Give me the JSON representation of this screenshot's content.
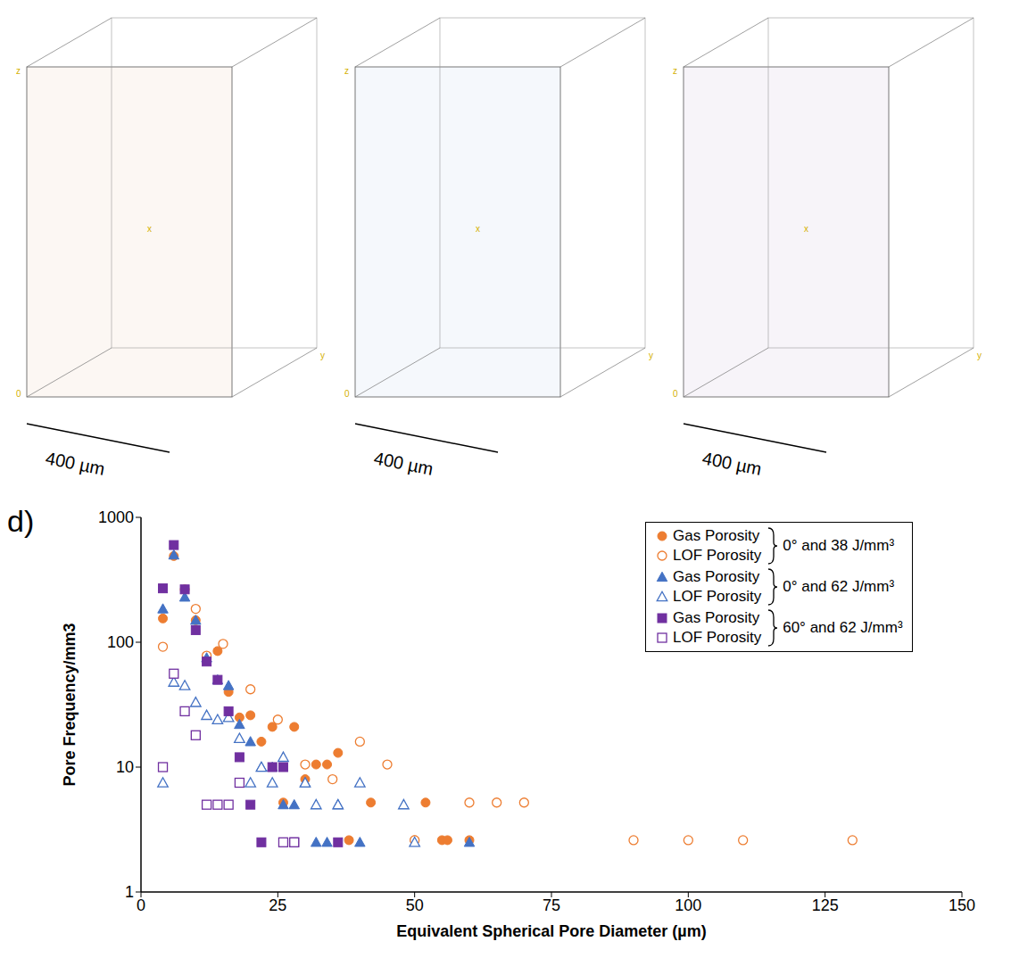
{
  "panels": [
    {
      "color": "#c8742c",
      "scale_bar": "400 µm",
      "axis_letters": [
        "z",
        "0",
        "y",
        "x"
      ]
    },
    {
      "color": "#5b8fc9",
      "scale_bar": "400 µm",
      "axis_letters": [
        "z",
        "0",
        "y",
        "x"
      ]
    },
    {
      "color": "#7b3c9e",
      "scale_bar": "400 µm",
      "axis_letters": [
        "z",
        "0",
        "y",
        "x"
      ]
    }
  ],
  "chart_data": {
    "type": "scatter",
    "panel_label": "d)",
    "x_label": "Equivalent Spherical Pore Diameter (µm)",
    "y_label": "Pore Frequency/mm3",
    "xlim": [
      0,
      150
    ],
    "xticks": [
      0,
      25,
      50,
      75,
      100,
      125,
      150
    ],
    "ylim": [
      1,
      1000
    ],
    "yticks": [
      1,
      10,
      100,
      1000
    ],
    "log": "y",
    "grid": false,
    "legend": "upper right",
    "series": [
      {
        "name": "Gas Porosity",
        "group": "0° and 38 J/mm³",
        "color": "#ed7d31",
        "marker": "filled_circle",
        "x": [
          4,
          6,
          8,
          10,
          12,
          14,
          16,
          18,
          20,
          22,
          24,
          26,
          28,
          30,
          32,
          34,
          36,
          38,
          42,
          50,
          52,
          55,
          56,
          60
        ],
        "values": [
          155,
          490,
          265,
          150,
          75,
          85,
          40,
          25,
          26,
          16,
          21,
          5.2,
          21,
          8,
          10.5,
          10.5,
          13,
          2.6,
          5.2,
          2.6,
          5.2,
          2.6,
          2.6,
          2.6
        ]
      },
      {
        "name": "LOF Porosity",
        "group": "0° and 38 J/mm³",
        "color": "#ed7d31",
        "marker": "open_circle",
        "x": [
          4,
          10,
          12,
          15,
          20,
          25,
          30,
          35,
          40,
          45,
          50,
          60,
          65,
          70,
          90,
          100,
          110,
          130
        ],
        "values": [
          92,
          185,
          78,
          97,
          42,
          24,
          10.5,
          8,
          16,
          10.5,
          2.6,
          5.2,
          5.2,
          5.2,
          2.6,
          2.6,
          2.6,
          2.6
        ]
      },
      {
        "name": "Gas Porosity",
        "group": "0° and 62 J/mm³",
        "color": "#4472c4",
        "marker": "filled_triangle",
        "x": [
          4,
          6,
          8,
          10,
          12,
          14,
          16,
          18,
          20,
          22,
          24,
          26,
          28,
          30,
          32,
          34,
          36,
          40,
          60
        ],
        "values": [
          185,
          500,
          230,
          150,
          75,
          50,
          45,
          22,
          16,
          10,
          10,
          5,
          5,
          7.5,
          2.5,
          2.5,
          5,
          2.5,
          2.5
        ]
      },
      {
        "name": "LOF Porosity",
        "group": "0° and 62 J/mm³",
        "color": "#4472c4",
        "marker": "open_triangle",
        "x": [
          4,
          6,
          8,
          10,
          12,
          14,
          16,
          18,
          20,
          22,
          24,
          26,
          30,
          32,
          36,
          40,
          48,
          50
        ],
        "values": [
          7.5,
          48,
          45,
          33,
          26,
          24,
          25,
          17,
          7.5,
          10,
          7.5,
          12,
          7.5,
          5,
          5,
          7.5,
          5,
          2.5
        ]
      },
      {
        "name": "Gas Porosity",
        "group": "60° and 62 J/mm³",
        "color": "#7030a0",
        "marker": "filled_square",
        "x": [
          4,
          6,
          8,
          10,
          12,
          14,
          16,
          18,
          20,
          22,
          24,
          26,
          28,
          36
        ],
        "values": [
          270,
          600,
          265,
          125,
          70,
          50,
          28,
          12,
          5,
          2.5,
          10,
          10,
          2.5,
          2.5
        ]
      },
      {
        "name": "LOF Porosity",
        "group": "60° and 62 J/mm³",
        "color": "#7030a0",
        "marker": "open_square",
        "x": [
          4,
          6,
          8,
          10,
          12,
          14,
          16,
          18,
          26,
          28
        ],
        "values": [
          10,
          56,
          28,
          18,
          5,
          5,
          5,
          7.5,
          2.5,
          2.5
        ]
      }
    ]
  }
}
